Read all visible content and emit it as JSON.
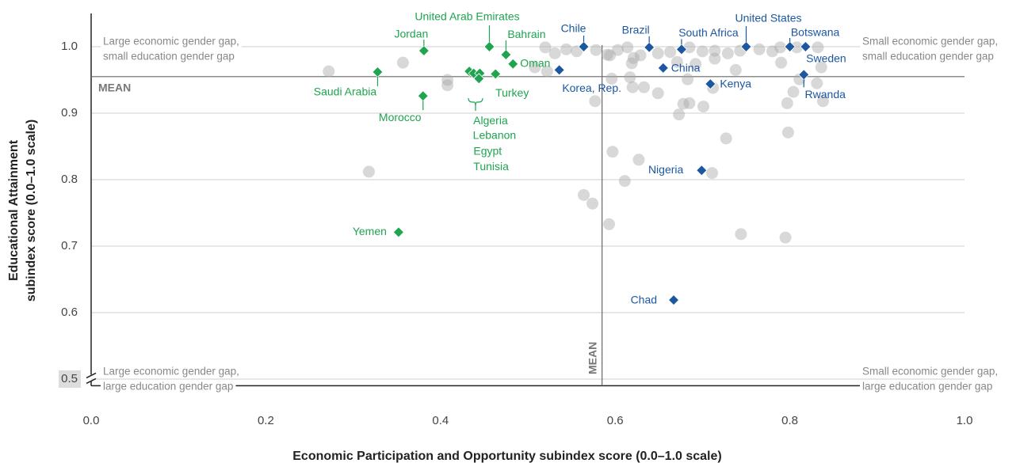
{
  "chart_data": {
    "type": "scatter",
    "x_label": "Economic Participation and Opportunity subindex score (0.0–1.0 scale)",
    "y_label": [
      "Educational Attainment",
      "subindex score (0.0–1.0 scale)"
    ],
    "xlim": [
      0,
      1.0
    ],
    "ylim": [
      0.49,
      1.05
    ],
    "xticks": [
      {
        "value": 0,
        "label": "0.0"
      },
      {
        "value": 0.2,
        "label": "0.2"
      },
      {
        "value": 0.4,
        "label": "0.4"
      },
      {
        "value": 0.6,
        "label": "0.6"
      },
      {
        "value": 0.8,
        "label": "0.8"
      },
      {
        "value": 1.0,
        "label": "1.0"
      }
    ],
    "yticks": [
      {
        "value": 0.5,
        "label": "0.5"
      },
      {
        "value": 0.6,
        "label": "0.6"
      },
      {
        "value": 0.7,
        "label": "0.7"
      },
      {
        "value": 0.8,
        "label": "0.8"
      },
      {
        "value": 0.9,
        "label": "0.9"
      },
      {
        "value": 1.0,
        "label": "1.0"
      }
    ],
    "grid": true,
    "mean_x": 0.585,
    "mean_y": 0.955,
    "mean_x_label": "MEAN",
    "mean_y_label": "MEAN",
    "quadrant_labels": {
      "top_left": [
        "Large economic gender gap,",
        "small education gender gap"
      ],
      "top_right": [
        "Small economic gender gap,",
        "small education gender gap"
      ],
      "bottom_left": [
        "Large economic gender gap,",
        "large education gender gap"
      ],
      "bottom_right": [
        "Small economic gender gap,",
        "large education gender gap"
      ]
    },
    "series": [
      {
        "color": "#a9a9a9",
        "marker": "circle",
        "x": [
          0.272,
          0.357,
          0.408,
          0.408,
          0.318,
          0.52,
          0.531,
          0.544,
          0.556,
          0.578,
          0.591,
          0.603,
          0.614,
          0.629,
          0.649,
          0.663,
          0.685,
          0.7,
          0.714,
          0.729,
          0.743,
          0.765,
          0.78,
          0.789,
          0.808,
          0.832,
          0.594,
          0.621,
          0.671,
          0.692,
          0.714,
          0.738,
          0.79,
          0.836,
          0.596,
          0.619,
          0.577,
          0.62,
          0.617,
          0.633,
          0.649,
          0.673,
          0.685,
          0.712,
          0.811,
          0.831,
          0.804,
          0.797,
          0.838,
          0.798,
          0.727,
          0.597,
          0.627,
          0.611,
          0.711,
          0.564,
          0.574,
          0.593,
          0.744,
          0.795,
          0.683,
          0.701,
          0.522,
          0.508,
          0.678
        ],
        "values": [
          0.963,
          0.976,
          0.95,
          0.942,
          0.812,
          0.999,
          0.99,
          0.996,
          0.993,
          0.995,
          0.988,
          0.995,
          0.999,
          0.987,
          0.99,
          0.992,
          0.999,
          0.993,
          0.994,
          0.99,
          0.994,
          0.996,
          0.993,
          0.999,
          0.999,
          0.999,
          0.987,
          0.983,
          0.977,
          0.974,
          0.982,
          0.965,
          0.976,
          0.969,
          0.952,
          0.975,
          0.918,
          0.939,
          0.954,
          0.939,
          0.93,
          0.898,
          0.915,
          0.938,
          0.951,
          0.945,
          0.932,
          0.915,
          0.918,
          0.871,
          0.862,
          0.842,
          0.83,
          0.798,
          0.81,
          0.777,
          0.764,
          0.733,
          0.718,
          0.713,
          0.951,
          0.91,
          0.963,
          0.969,
          0.914
        ]
      },
      {
        "color": "#1fa44f",
        "marker": "diamond",
        "x": [
          0.456,
          0.381,
          0.475,
          0.483,
          0.328,
          0.38,
          0.463,
          0.433,
          0.438,
          0.445,
          0.444,
          0.352
        ],
        "values": [
          1.0,
          0.994,
          0.988,
          0.974,
          0.962,
          0.926,
          0.959,
          0.963,
          0.96,
          0.96,
          0.952,
          0.721
        ],
        "labels": [
          "United Arab Emirates",
          "Jordan",
          "Bahrain",
          "Oman",
          "Saudi Arabia",
          "Morocco",
          "Turkey",
          "Algeria",
          "Lebanon",
          "Egypt",
          "Tunisia",
          "Yemen"
        ]
      },
      {
        "color": "#1c57a0",
        "marker": "diamond",
        "x": [
          0.564,
          0.536,
          0.639,
          0.676,
          0.655,
          0.75,
          0.8,
          0.818,
          0.709,
          0.816,
          0.699,
          0.667
        ],
        "values": [
          1.0,
          0.965,
          0.999,
          0.996,
          0.968,
          1.0,
          1.0,
          1.0,
          0.944,
          0.958,
          0.814,
          0.619
        ],
        "labels": [
          "Chile",
          "Korea, Rep.",
          "Brazil",
          "South Africa",
          "China",
          "United States",
          "Botswana",
          "Sweden",
          "Kenya",
          "Rwanda",
          "Nigeria",
          "Chad"
        ]
      }
    ]
  }
}
